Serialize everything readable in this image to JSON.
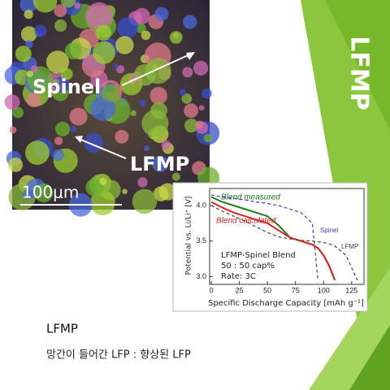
{
  "slide": {
    "side_title": "LFMP",
    "heading": "LFMP",
    "body": "망간이 들어간 LFP : 향상된 LFP"
  },
  "micrograph": {
    "labels": [
      "Spinel",
      "LFMP"
    ],
    "scale_bar": "100μm"
  },
  "chart_data": {
    "type": "line",
    "xlabel": "Specific Discharge Capacity [mAh g⁻¹]",
    "ylabel": "Potential vs. Li/Li⁺ [V]",
    "annotations": [
      "LFMP-Spinel Blend",
      "50 : 50 cap%",
      "Rate: 3C"
    ],
    "x": [
      0,
      10,
      20,
      30,
      40,
      50,
      60,
      70,
      80,
      90,
      95,
      100,
      105,
      110,
      120,
      130
    ],
    "xlim": [
      -1.5,
      136
    ],
    "ylim": [
      2.89,
      4.24
    ],
    "xticks": [
      0,
      25,
      50,
      75,
      100,
      125
    ],
    "yticks": [
      {
        "value": 3,
        "label": "3.0"
      },
      {
        "value": 3.5,
        "label": "3.5"
      },
      {
        "value": 4,
        "label": "4.0"
      }
    ],
    "series": [
      {
        "name": "Blend measured",
        "color": "#1a7a1a",
        "values": [
          4.12,
          4.05,
          4.0,
          3.95,
          3.9,
          3.85,
          3.72,
          3.55,
          3.5,
          3.45,
          3.4,
          3.3,
          3.15,
          2.95,
          null,
          null
        ]
      },
      {
        "name": "Blend calculated",
        "color": "#e02020",
        "values": [
          4.05,
          3.97,
          3.9,
          3.85,
          3.8,
          3.75,
          3.65,
          3.55,
          3.5,
          3.45,
          3.4,
          3.3,
          3.15,
          2.95,
          null,
          null
        ]
      },
      {
        "name": "Spinel",
        "color": "#3a3ad0",
        "values": [
          4.15,
          4.12,
          4.1,
          4.08,
          4.05,
          4.03,
          4.0,
          3.95,
          3.9,
          3.75,
          2.95,
          null,
          null,
          null,
          null,
          null
        ]
      },
      {
        "name": "LFMP",
        "color": "#444444",
        "values": [
          4.0,
          3.92,
          3.85,
          3.78,
          3.7,
          3.62,
          3.56,
          3.53,
          3.51,
          3.5,
          3.49,
          3.48,
          3.46,
          3.43,
          3.3,
          2.95
        ]
      }
    ]
  }
}
